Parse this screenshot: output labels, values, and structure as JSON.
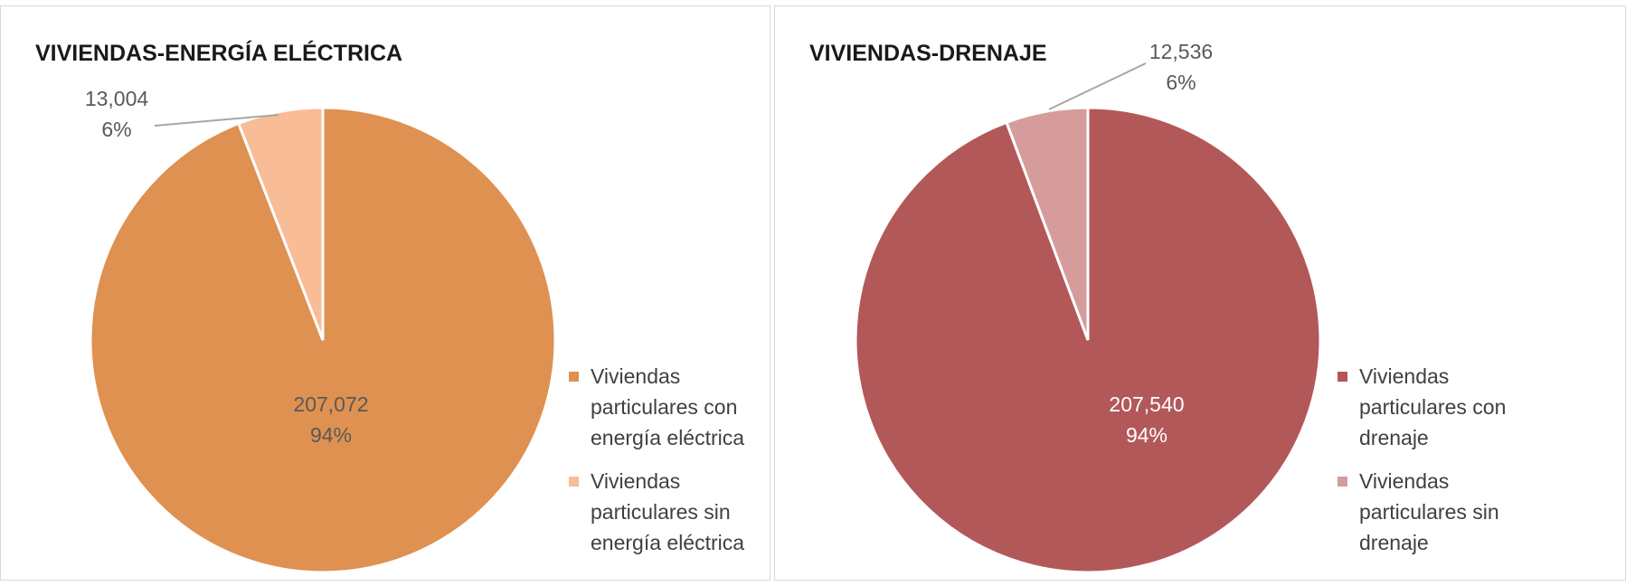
{
  "chart_data": [
    {
      "type": "pie",
      "title": "VIVIENDAS-ENERGÍA ELÉCTRICA",
      "categories": [
        "Viviendas particulares con energía eléctrica",
        "Viviendas particulares sin energía eléctrica"
      ],
      "values": [
        207072,
        13004
      ],
      "value_labels": [
        "207,072",
        "13,004"
      ],
      "percent_labels": [
        "94%",
        "6%"
      ],
      "colors": [
        "#de9150",
        "#f8bc97"
      ],
      "legend": "right"
    },
    {
      "type": "pie",
      "title": "VIVIENDAS-DRENAJE",
      "categories": [
        "Viviendas particulares con drenaje",
        "Viviendas particulares sin drenaje"
      ],
      "values": [
        207540,
        12536
      ],
      "value_labels": [
        "207,540",
        "12,536"
      ],
      "percent_labels": [
        "94%",
        "6%"
      ],
      "colors": [
        "#b35859",
        "#d69c9c"
      ],
      "legend": "right"
    }
  ]
}
